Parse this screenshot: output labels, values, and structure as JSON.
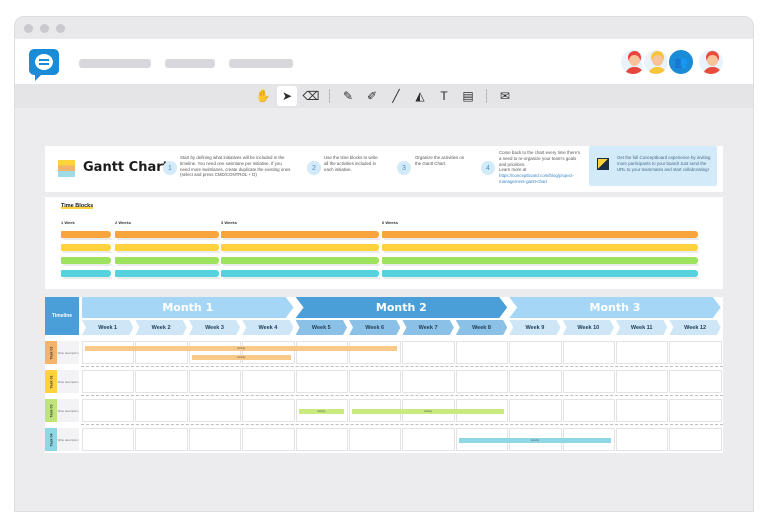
{
  "app": {
    "logo_icon": "chat-bubble-logo-icon",
    "accent": "#1a8bd6",
    "avatars": [
      {
        "name": "avatar-red-hair",
        "color": "#e8453c"
      },
      {
        "name": "avatar-yellow-hair",
        "color": "#f7c53a"
      },
      {
        "name": "participants-icon",
        "color": "#1a8bd6"
      },
      {
        "name": "avatar-man",
        "color": "#e84c3d"
      }
    ]
  },
  "toolbar": {
    "tools": [
      {
        "name": "hand-tool-icon",
        "glyph": "✋"
      },
      {
        "name": "pointer-tool-icon",
        "glyph": "➤"
      },
      {
        "name": "eraser-tool-icon",
        "glyph": "⌫"
      },
      {
        "name": "pen-tool-icon",
        "glyph": "✎"
      },
      {
        "name": "marker-tool-icon",
        "glyph": "✐"
      },
      {
        "name": "line-tool-icon",
        "glyph": "╱"
      },
      {
        "name": "shape-tool-icon",
        "glyph": "◭"
      },
      {
        "name": "text-tool-icon",
        "glyph": "T"
      },
      {
        "name": "sticky-note-tool-icon",
        "glyph": "▤"
      },
      {
        "name": "comment-tool-icon",
        "glyph": "✉"
      }
    ]
  },
  "header": {
    "title": "Gantt Chart",
    "steps": [
      {
        "num": "1",
        "text": "Start by defining what initiatives will be included in the timeline. You need one swimlane per initiative. If you need more swimlanes, create duplicate the existing ones (select and press CMD/CONTROL + D)"
      },
      {
        "num": "2",
        "text": "Use the time blocks to write all the activities included in each initiative."
      },
      {
        "num": "3",
        "text": "Organize the activities on the Gantt Chart."
      },
      {
        "num": "4",
        "text": "Come back to the chart every time there's a need to re-organize your team's goals and priorities.",
        "link_label": "Learn more at",
        "link": "https://conceptboard.com/blog/project-management-gantt-chart"
      }
    ],
    "promo": "Get the full Conceptboard experience by inviting more participants to your board! Just send the URL to your teammates and start collaborating!"
  },
  "time_blocks": {
    "title": "Time Blocks",
    "labels": [
      "1 Week",
      "2 Weeks",
      "3 Weeks",
      "6 Weeks"
    ],
    "colors": [
      "#f7a53c",
      "#ffd23e",
      "#9fe25e",
      "#56d2df"
    ]
  },
  "timeline": {
    "label": "Timeline",
    "months": [
      {
        "label": "Month 1",
        "color": "#a6d6f6"
      },
      {
        "label": "Month 2",
        "color": "#4a9fd8"
      },
      {
        "label": "Month 3",
        "color": "#a6d6f6"
      }
    ],
    "weeks": [
      "Week 1",
      "Week 2",
      "Week 3",
      "Week 4",
      "Week 5",
      "Week 6",
      "Week 7",
      "Week 8",
      "Week 9",
      "Week 10",
      "Week 11",
      "Week 12"
    ],
    "tasks": [
      {
        "label": "Task 01",
        "desc": "Write description",
        "color": "#f4b36c"
      },
      {
        "label": "Task 02",
        "desc": "Write description",
        "color": "#ffd23e"
      },
      {
        "label": "Task 03",
        "desc": "Write description",
        "color": "#bfe57a"
      },
      {
        "label": "Task 04",
        "desc": "Write description",
        "color": "#8ed8e6"
      }
    ],
    "activities": [
      {
        "task": 0,
        "start": 0,
        "weeks": 6,
        "label": "Activity",
        "color": "#f9c98a"
      },
      {
        "task": 0,
        "start": 2,
        "weeks": 2,
        "label": "Activity",
        "color": "#f9c98a"
      },
      {
        "task": 2,
        "start": 4,
        "weeks": 1,
        "label": "Activity",
        "color": "#c8ea7e"
      },
      {
        "task": 2,
        "start": 5,
        "weeks": 3,
        "label": "Activity",
        "color": "#c8ea7e"
      },
      {
        "task": 3,
        "start": 7,
        "weeks": 3,
        "label": "Activity",
        "color": "#8ed8e6"
      }
    ]
  }
}
